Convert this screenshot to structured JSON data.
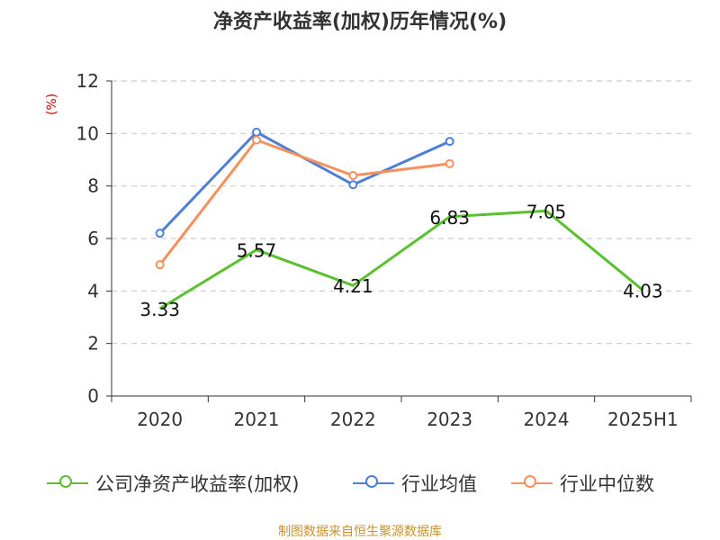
{
  "title": "净资产收益率(加权)历年情况(%)",
  "footer": "制图数据来自恒生聚源数据库",
  "colors": {
    "series1": "#5ac02f",
    "series2": "#4e7fd8",
    "series3": "#f7905a",
    "grid": "#cccccc",
    "axis": "#333333",
    "ylabel": "#cc0000",
    "footer": "#c8922a"
  },
  "chart_data": {
    "type": "line",
    "title": "净资产收益率(加权)历年情况(%)",
    "xlabel": "",
    "ylabel": "(%)",
    "categories": [
      "2020",
      "2021",
      "2022",
      "2023",
      "2024",
      "2025H1"
    ],
    "ylim": [
      0,
      12
    ],
    "yticks": [
      "0",
      "2",
      "4",
      "6",
      "8",
      "10",
      "12"
    ],
    "grid": true,
    "legend_position": "bottom",
    "series": [
      {
        "name": "公司净资产收益率(加权)",
        "values": [
          3.33,
          5.57,
          4.21,
          6.83,
          7.05,
          4.03
        ],
        "labels": [
          "3.33",
          "5.57",
          "4.21",
          "6.83",
          "7.05",
          "4.03"
        ]
      },
      {
        "name": "行业均值",
        "values": [
          6.2,
          10.05,
          8.05,
          9.7,
          null,
          null
        ]
      },
      {
        "name": "行业中位数",
        "values": [
          5.0,
          9.75,
          8.4,
          8.85,
          null,
          null
        ]
      }
    ]
  }
}
